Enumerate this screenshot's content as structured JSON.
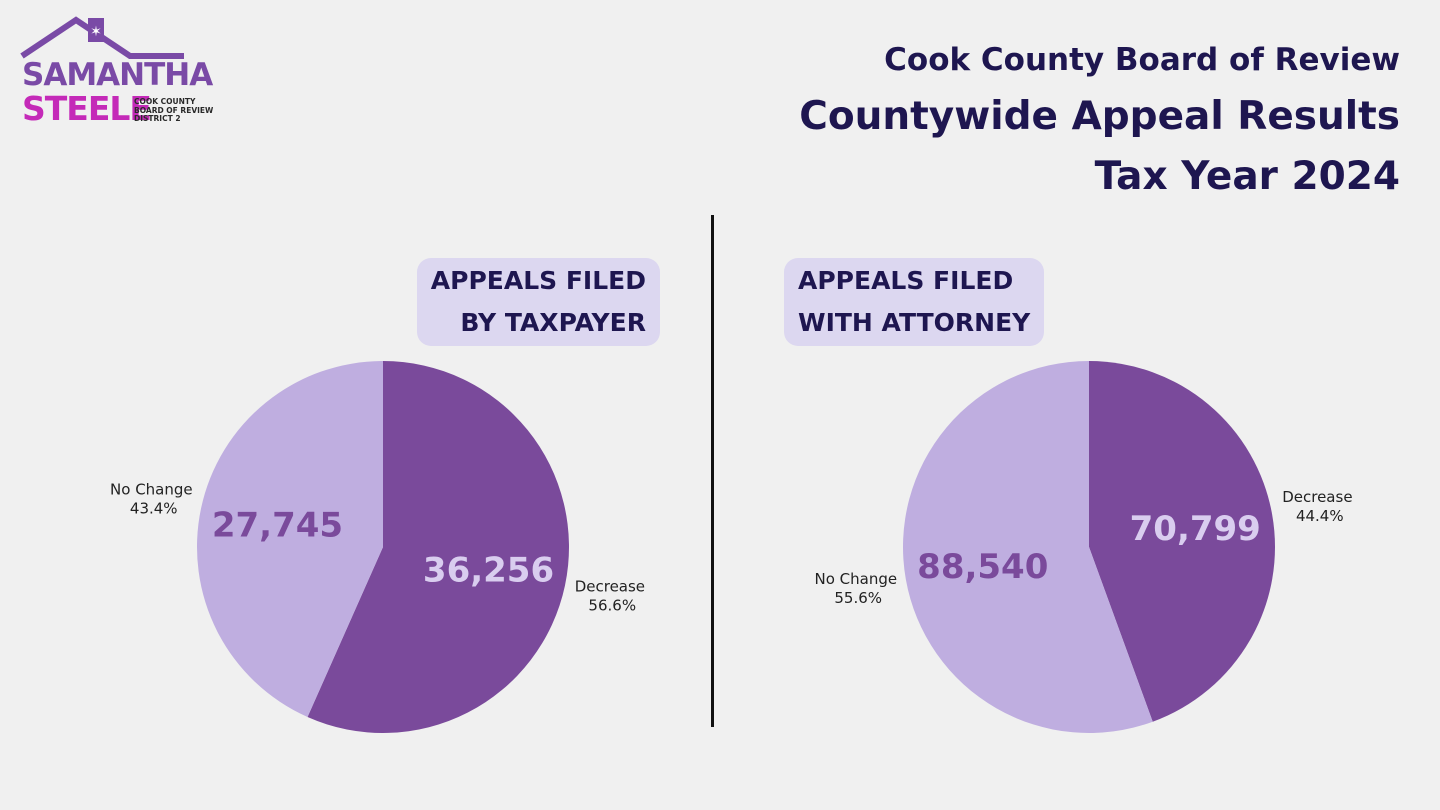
{
  "logo": {
    "line1": "SAMANTHA",
    "line2": "STEELE",
    "line3": [
      "COOK COUNTY",
      "BOARD OF REVIEW",
      "DISTRICT 2"
    ]
  },
  "header": {
    "org": "Cook County Board of Review",
    "title": "Countywide Appeal Results",
    "year": "Tax Year 2024"
  },
  "colors": {
    "decrease": "#7a4a9b",
    "no_change": "#bfaee0",
    "text_on_dark": "#d9cdef",
    "text_on_light": "#7a4a9b"
  },
  "chart_data": [
    {
      "type": "pie",
      "title": "APPEALS FILED BY TAXPAYER",
      "title_lines": [
        "APPEALS FILED",
        "BY TAXPAYER"
      ],
      "slices": [
        {
          "label": "Decrease",
          "value": 36256,
          "value_label": "36,256",
          "percent_label": "56.6%",
          "percent": 56.6
        },
        {
          "label": "No Change",
          "value": 27745,
          "value_label": "27,745",
          "percent_label": "43.4%",
          "percent": 43.4
        }
      ]
    },
    {
      "type": "pie",
      "title": "APPEALS FILED WITH ATTORNEY",
      "title_lines": [
        "APPEALS FILED",
        "WITH ATTORNEY"
      ],
      "slices": [
        {
          "label": "Decrease",
          "value": 70799,
          "value_label": "70,799",
          "percent_label": "44.4%",
          "percent": 44.4
        },
        {
          "label": "No Change",
          "value": 88540,
          "value_label": "88,540",
          "percent_label": "55.6%",
          "percent": 55.6
        }
      ]
    }
  ]
}
